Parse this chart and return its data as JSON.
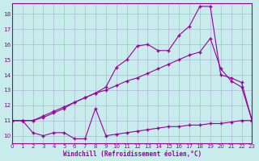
{
  "xlabel": "Windchill (Refroidissement éolien,°C)",
  "bg_color": "#c8ecec",
  "grid_color": "#b0b8d8",
  "line_color": "#990099",
  "xlim": [
    0,
    23
  ],
  "ylim": [
    9.5,
    18.7
  ],
  "yticks": [
    10,
    11,
    12,
    13,
    14,
    15,
    16,
    17,
    18
  ],
  "xticks": [
    0,
    1,
    2,
    3,
    4,
    5,
    6,
    7,
    8,
    9,
    10,
    11,
    12,
    13,
    14,
    15,
    16,
    17,
    18,
    19,
    20,
    21,
    22,
    23
  ],
  "line1_x": [
    0,
    1,
    2,
    3,
    4,
    5,
    6,
    7,
    8,
    9,
    10,
    11,
    12,
    13,
    14,
    15,
    16,
    17,
    18,
    19,
    20,
    21,
    22,
    23
  ],
  "line1_y": [
    11,
    11,
    10.2,
    10,
    10.2,
    10.2,
    9.8,
    9.8,
    11.8,
    10,
    10.1,
    10.2,
    10.3,
    10.4,
    10.5,
    10.6,
    10.6,
    10.7,
    10.7,
    10.8,
    10.8,
    10.9,
    11.0,
    11.0
  ],
  "line2_x": [
    0,
    1,
    2,
    3,
    4,
    5,
    6,
    7,
    8,
    9,
    10,
    11,
    12,
    13,
    14,
    15,
    16,
    17,
    18,
    19,
    20,
    21,
    22,
    23
  ],
  "line2_y": [
    11,
    11,
    11,
    11.3,
    11.6,
    11.9,
    12.2,
    12.5,
    12.8,
    13.0,
    13.3,
    13.6,
    13.8,
    14.1,
    14.4,
    14.7,
    15.0,
    15.3,
    15.5,
    16.4,
    14.4,
    13.6,
    13.2,
    11
  ],
  "line3_x": [
    0,
    1,
    2,
    3,
    4,
    5,
    6,
    7,
    8,
    9,
    10,
    11,
    12,
    13,
    14,
    15,
    16,
    17,
    18,
    19,
    20,
    21,
    22,
    23
  ],
  "line3_y": [
    11,
    11,
    11,
    11.2,
    11.5,
    11.8,
    12.2,
    12.5,
    12.8,
    13.2,
    14.5,
    15.0,
    15.9,
    16.0,
    15.6,
    15.6,
    16.6,
    17.2,
    18.5,
    18.5,
    14.0,
    13.8,
    13.5,
    11
  ]
}
